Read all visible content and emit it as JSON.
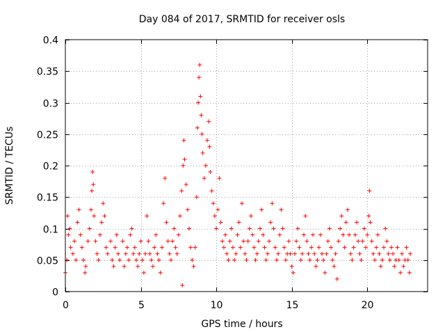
{
  "chart_data": {
    "type": "scatter",
    "title": "Day 084 of 2017, SRMTID for receiver osls",
    "xlabel": "GPS time / hours",
    "ylabel": "SRMTID / TECUs",
    "xlim": [
      0,
      24
    ],
    "ylim": [
      0,
      0.4
    ],
    "x_ticks": [
      0,
      5,
      10,
      15,
      20
    ],
    "x_tick_labels": [
      "0",
      "5",
      "10",
      "15",
      "20"
    ],
    "y_ticks": [
      0,
      0.05,
      0.1,
      0.15,
      0.2,
      0.25,
      0.3,
      0.35,
      0.4
    ],
    "y_tick_labels": [
      "0",
      "0.05",
      "0.1",
      "0.15",
      "0.2",
      "0.25",
      "0.3",
      "0.35",
      "0.4"
    ],
    "grid": true,
    "marker": "plus",
    "color": "#ff0000",
    "series": [
      {
        "name": "SRMTID",
        "points": [
          [
            0.0,
            0.03
          ],
          [
            0.1,
            0.05
          ],
          [
            0.15,
            0.12
          ],
          [
            0.2,
            0.09
          ],
          [
            0.3,
            0.1
          ],
          [
            0.35,
            0.07
          ],
          [
            0.5,
            0.06
          ],
          [
            0.6,
            0.08
          ],
          [
            0.7,
            0.05
          ],
          [
            0.8,
            0.11
          ],
          [
            0.9,
            0.13
          ],
          [
            1.0,
            0.09
          ],
          [
            1.1,
            0.07
          ],
          [
            1.2,
            0.05
          ],
          [
            1.3,
            0.03
          ],
          [
            1.35,
            0.04
          ],
          [
            1.5,
            0.08
          ],
          [
            1.6,
            0.1
          ],
          [
            1.7,
            0.13
          ],
          [
            1.75,
            0.16
          ],
          [
            1.8,
            0.19
          ],
          [
            1.85,
            0.17
          ],
          [
            1.9,
            0.12
          ],
          [
            2.0,
            0.08
          ],
          [
            2.1,
            0.06
          ],
          [
            2.2,
            0.05
          ],
          [
            2.3,
            0.09
          ],
          [
            2.4,
            0.11
          ],
          [
            2.5,
            0.14
          ],
          [
            2.6,
            0.12
          ],
          [
            2.7,
            0.07
          ],
          [
            2.8,
            0.06
          ],
          [
            3.0,
            0.08
          ],
          [
            3.1,
            0.05
          ],
          [
            3.2,
            0.04
          ],
          [
            3.3,
            0.07
          ],
          [
            3.4,
            0.09
          ],
          [
            3.5,
            0.06
          ],
          [
            3.6,
            0.05
          ],
          [
            3.8,
            0.08
          ],
          [
            3.9,
            0.04
          ],
          [
            4.0,
            0.06
          ],
          [
            4.1,
            0.07
          ],
          [
            4.2,
            0.05
          ],
          [
            4.3,
            0.09
          ],
          [
            4.4,
            0.1
          ],
          [
            4.5,
            0.06
          ],
          [
            4.6,
            0.07
          ],
          [
            4.7,
            0.05
          ],
          [
            4.8,
            0.04
          ],
          [
            4.9,
            0.06
          ],
          [
            5.0,
            0.08
          ],
          [
            5.1,
            0.05
          ],
          [
            5.2,
            0.03
          ],
          [
            5.3,
            0.06
          ],
          [
            5.4,
            0.12
          ],
          [
            5.5,
            0.08
          ],
          [
            5.6,
            0.06
          ],
          [
            5.7,
            0.05
          ],
          [
            5.8,
            0.04
          ],
          [
            5.9,
            0.07
          ],
          [
            6.0,
            0.09
          ],
          [
            6.1,
            0.06
          ],
          [
            6.2,
            0.05
          ],
          [
            6.3,
            0.03
          ],
          [
            6.4,
            0.07
          ],
          [
            6.5,
            0.14
          ],
          [
            6.6,
            0.18
          ],
          [
            6.7,
            0.11
          ],
          [
            6.8,
            0.08
          ],
          [
            6.9,
            0.06
          ],
          [
            7.0,
            0.05
          ],
          [
            7.1,
            0.08
          ],
          [
            7.2,
            0.1
          ],
          [
            7.3,
            0.07
          ],
          [
            7.4,
            0.06
          ],
          [
            7.5,
            0.09
          ],
          [
            7.6,
            0.12
          ],
          [
            7.7,
            0.16
          ],
          [
            7.75,
            0.01
          ],
          [
            7.8,
            0.2
          ],
          [
            7.85,
            0.24
          ],
          [
            7.9,
            0.21
          ],
          [
            8.0,
            0.17
          ],
          [
            8.1,
            0.13
          ],
          [
            8.2,
            0.1
          ],
          [
            8.3,
            0.07
          ],
          [
            8.4,
            0.05
          ],
          [
            8.5,
            0.04
          ],
          [
            8.6,
            0.07
          ],
          [
            8.7,
            0.15
          ],
          [
            8.75,
            0.26
          ],
          [
            8.8,
            0.3
          ],
          [
            8.85,
            0.34
          ],
          [
            8.9,
            0.36
          ],
          [
            8.95,
            0.31
          ],
          [
            9.0,
            0.28
          ],
          [
            9.05,
            0.25
          ],
          [
            9.1,
            0.22
          ],
          [
            9.2,
            0.18
          ],
          [
            9.3,
            0.2
          ],
          [
            9.4,
            0.24
          ],
          [
            9.5,
            0.27
          ],
          [
            9.55,
            0.23
          ],
          [
            9.6,
            0.19
          ],
          [
            9.7,
            0.16
          ],
          [
            9.8,
            0.14
          ],
          [
            9.9,
            0.12
          ],
          [
            10.0,
            0.1
          ],
          [
            10.1,
            0.13
          ],
          [
            10.2,
            0.18
          ],
          [
            10.3,
            0.11
          ],
          [
            10.4,
            0.08
          ],
          [
            10.5,
            0.07
          ],
          [
            10.6,
            0.09
          ],
          [
            10.7,
            0.06
          ],
          [
            10.8,
            0.05
          ],
          [
            10.9,
            0.08
          ],
          [
            11.0,
            0.1
          ],
          [
            11.1,
            0.07
          ],
          [
            11.2,
            0.05
          ],
          [
            11.3,
            0.06
          ],
          [
            11.4,
            0.09
          ],
          [
            11.5,
            0.11
          ],
          [
            11.6,
            0.07
          ],
          [
            11.7,
            0.14
          ],
          [
            11.8,
            0.08
          ],
          [
            11.9,
            0.06
          ],
          [
            12.0,
            0.05
          ],
          [
            12.1,
            0.08
          ],
          [
            12.2,
            0.1
          ],
          [
            12.3,
            0.12
          ],
          [
            12.4,
            0.09
          ],
          [
            12.5,
            0.07
          ],
          [
            12.6,
            0.05
          ],
          [
            12.7,
            0.06
          ],
          [
            12.8,
            0.08
          ],
          [
            12.9,
            0.1
          ],
          [
            13.0,
            0.13
          ],
          [
            13.1,
            0.09
          ],
          [
            13.2,
            0.07
          ],
          [
            13.3,
            0.05
          ],
          [
            13.4,
            0.06
          ],
          [
            13.5,
            0.08
          ],
          [
            13.6,
            0.11
          ],
          [
            13.7,
            0.14
          ],
          [
            13.8,
            0.1
          ],
          [
            13.9,
            0.07
          ],
          [
            14.0,
            0.05
          ],
          [
            14.1,
            0.06
          ],
          [
            14.2,
            0.09
          ],
          [
            14.3,
            0.13
          ],
          [
            14.4,
            0.1
          ],
          [
            14.5,
            0.07
          ],
          [
            14.6,
            0.05
          ],
          [
            14.7,
            0.06
          ],
          [
            14.8,
            0.08
          ],
          [
            14.9,
            0.06
          ],
          [
            15.0,
            0.04
          ],
          [
            15.1,
            0.03
          ],
          [
            15.2,
            0.06
          ],
          [
            15.3,
            0.08
          ],
          [
            15.4,
            0.1
          ],
          [
            15.5,
            0.07
          ],
          [
            15.6,
            0.05
          ],
          [
            15.7,
            0.06
          ],
          [
            15.8,
            0.09
          ],
          [
            15.9,
            0.12
          ],
          [
            16.0,
            0.08
          ],
          [
            16.1,
            0.06
          ],
          [
            16.2,
            0.05
          ],
          [
            16.3,
            0.07
          ],
          [
            16.4,
            0.09
          ],
          [
            16.5,
            0.06
          ],
          [
            16.6,
            0.04
          ],
          [
            16.7,
            0.05
          ],
          [
            16.8,
            0.07
          ],
          [
            16.9,
            0.09
          ],
          [
            17.0,
            0.06
          ],
          [
            17.1,
            0.05
          ],
          [
            17.2,
            0.03
          ],
          [
            17.3,
            0.06
          ],
          [
            17.4,
            0.08
          ],
          [
            17.5,
            0.1
          ],
          [
            17.6,
            0.07
          ],
          [
            17.7,
            0.05
          ],
          [
            17.8,
            0.04
          ],
          [
            17.9,
            0.06
          ],
          [
            18.0,
            0.02
          ],
          [
            18.1,
            0.08
          ],
          [
            18.2,
            0.1
          ],
          [
            18.3,
            0.12
          ],
          [
            18.4,
            0.09
          ],
          [
            18.5,
            0.07
          ],
          [
            18.6,
            0.11
          ],
          [
            18.7,
            0.13
          ],
          [
            18.8,
            0.09
          ],
          [
            18.9,
            0.06
          ],
          [
            19.0,
            0.05
          ],
          [
            19.1,
            0.07
          ],
          [
            19.2,
            0.09
          ],
          [
            19.3,
            0.11
          ],
          [
            19.4,
            0.08
          ],
          [
            19.5,
            0.06
          ],
          [
            19.6,
            0.05
          ],
          [
            19.7,
            0.08
          ],
          [
            19.8,
            0.1
          ],
          [
            19.9,
            0.07
          ],
          [
            20.0,
            0.09
          ],
          [
            20.1,
            0.12
          ],
          [
            20.15,
            0.16
          ],
          [
            20.2,
            0.11
          ],
          [
            20.3,
            0.08
          ],
          [
            20.4,
            0.06
          ],
          [
            20.5,
            0.05
          ],
          [
            20.6,
            0.07
          ],
          [
            20.7,
            0.09
          ],
          [
            20.8,
            0.06
          ],
          [
            20.9,
            0.04
          ],
          [
            21.0,
            0.05
          ],
          [
            21.1,
            0.07
          ],
          [
            21.2,
            0.1
          ],
          [
            21.3,
            0.08
          ],
          [
            21.4,
            0.06
          ],
          [
            21.5,
            0.05
          ],
          [
            21.6,
            0.07
          ],
          [
            21.7,
            0.06
          ],
          [
            21.8,
            0.04
          ],
          [
            21.9,
            0.05
          ],
          [
            22.0,
            0.07
          ],
          [
            22.1,
            0.05
          ],
          [
            22.2,
            0.03
          ],
          [
            22.3,
            0.06
          ],
          [
            22.4,
            0.04
          ],
          [
            22.5,
            0.05
          ],
          [
            22.6,
            0.07
          ],
          [
            22.7,
            0.05
          ],
          [
            22.8,
            0.03
          ],
          [
            22.85,
            0.06
          ]
        ]
      }
    ]
  }
}
